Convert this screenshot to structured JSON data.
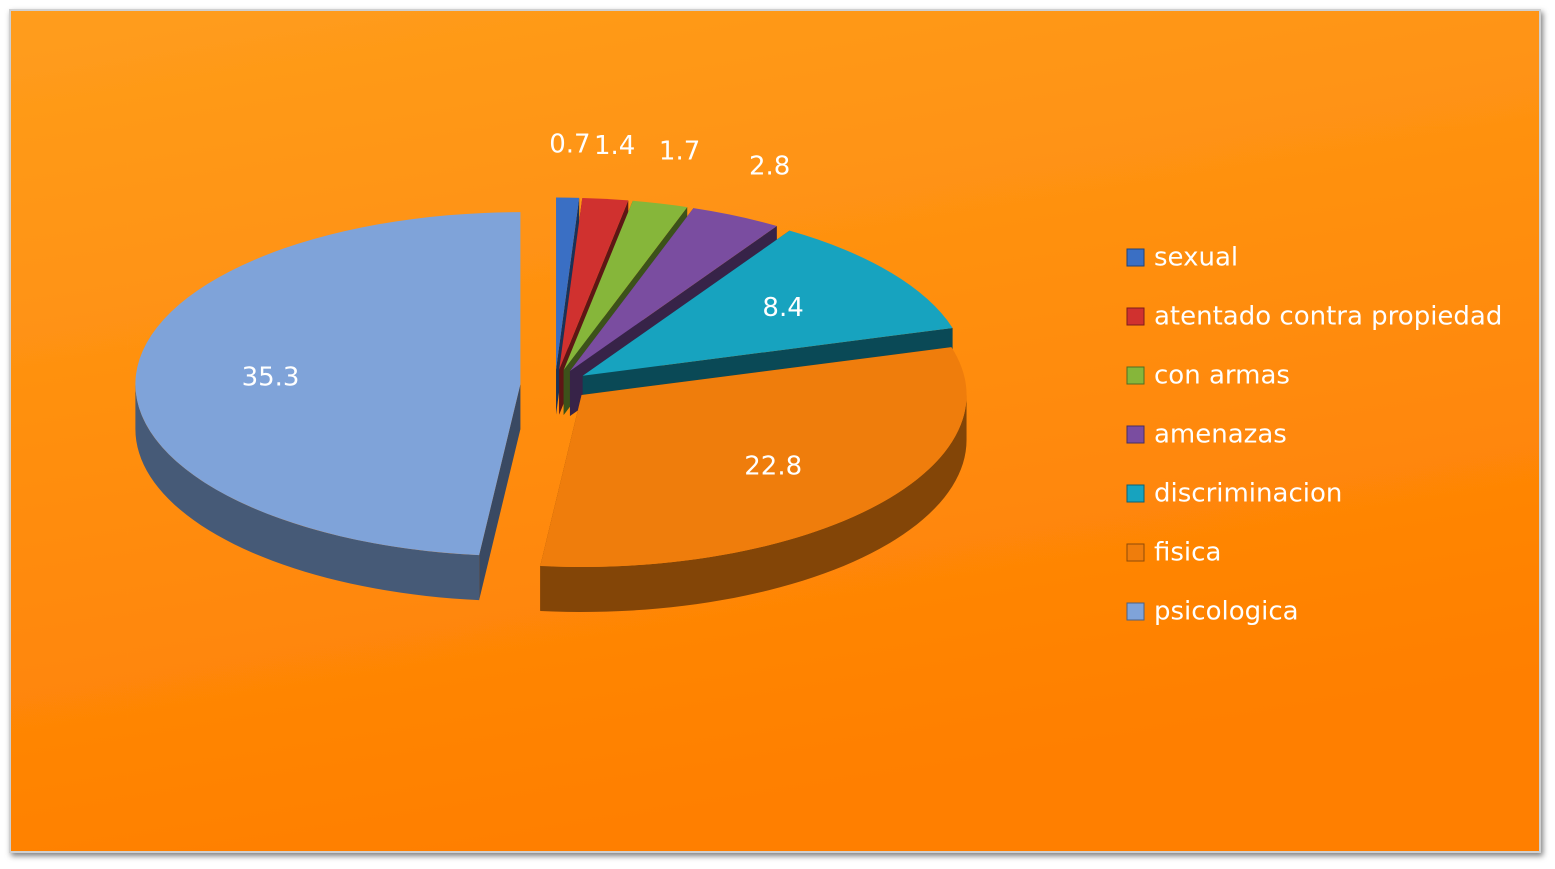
{
  "chart_data": {
    "type": "pie",
    "categories": [
      "sexual",
      "atentado contra propiedad",
      "con armas",
      "amenazas",
      "discriminacion",
      "fisica",
      "psicologica"
    ],
    "values": [
      0.7,
      1.4,
      1.7,
      2.8,
      8.4,
      22.8,
      35.3
    ],
    "colors": [
      "#3a6fc4",
      "#d0312f",
      "#86b63a",
      "#7a4da0",
      "#17a3bf",
      "#ef7d0c",
      "#7fa3d9"
    ],
    "legend": "right"
  }
}
